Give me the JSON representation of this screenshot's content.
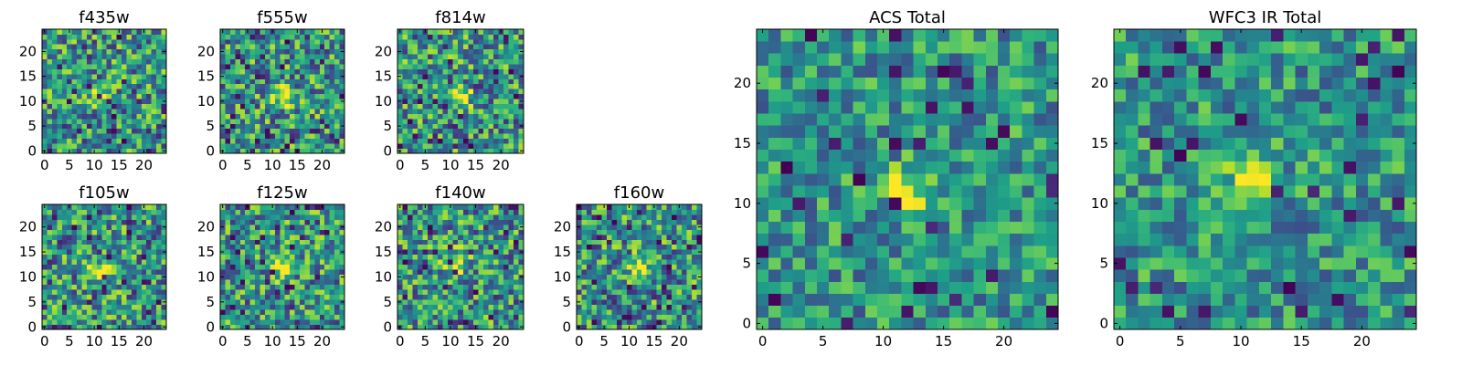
{
  "chart_data": [
    {
      "type": "heatmap",
      "title": "f435w",
      "xlim": [
        0,
        25
      ],
      "ylim": [
        0,
        25
      ],
      "xticks": [
        "0",
        "5",
        "10",
        "15",
        "20"
      ],
      "yticks": [
        "0",
        "5",
        "10",
        "15",
        "20"
      ],
      "colormap": "viridis",
      "source_center": [
        11,
        11
      ]
    },
    {
      "type": "heatmap",
      "title": "f555w",
      "xlim": [
        0,
        25
      ],
      "ylim": [
        0,
        25
      ],
      "xticks": [
        "0",
        "5",
        "10",
        "15",
        "20"
      ],
      "yticks": [
        "0",
        "5",
        "10",
        "15",
        "20"
      ],
      "colormap": "viridis",
      "source_center": [
        12,
        11
      ]
    },
    {
      "type": "heatmap",
      "title": "f814w",
      "xlim": [
        0,
        25
      ],
      "ylim": [
        0,
        25
      ],
      "xticks": [
        "0",
        "5",
        "10",
        "15",
        "20"
      ],
      "yticks": [
        "0",
        "5",
        "10",
        "15",
        "20"
      ],
      "colormap": "viridis",
      "source_center": [
        12,
        11
      ]
    },
    {
      "type": "heatmap",
      "title": "f105w",
      "xlim": [
        0,
        25
      ],
      "ylim": [
        0,
        25
      ],
      "xticks": [
        "0",
        "5",
        "10",
        "15",
        "20"
      ],
      "yticks": [
        "0",
        "5",
        "10",
        "15",
        "20"
      ],
      "colormap": "viridis",
      "source_center": [
        11,
        11
      ]
    },
    {
      "type": "heatmap",
      "title": "f125w",
      "xlim": [
        0,
        25
      ],
      "ylim": [
        0,
        25
      ],
      "xticks": [
        "0",
        "5",
        "10",
        "15",
        "20"
      ],
      "yticks": [
        "0",
        "5",
        "10",
        "15",
        "20"
      ],
      "colormap": "viridis",
      "source_center": [
        12,
        12
      ]
    },
    {
      "type": "heatmap",
      "title": "f140w",
      "xlim": [
        0,
        25
      ],
      "ylim": [
        0,
        25
      ],
      "xticks": [
        "0",
        "5",
        "10",
        "15",
        "20"
      ],
      "yticks": [
        "0",
        "5",
        "10",
        "15",
        "20"
      ],
      "colormap": "viridis",
      "source_center": [
        11,
        13
      ]
    },
    {
      "type": "heatmap",
      "title": "f160w",
      "xlim": [
        0,
        25
      ],
      "ylim": [
        0,
        25
      ],
      "xticks": [
        "0",
        "5",
        "10",
        "15",
        "20"
      ],
      "yticks": [
        "0",
        "5",
        "10",
        "15",
        "20"
      ],
      "colormap": "viridis",
      "source_center": [
        12,
        12
      ]
    },
    {
      "type": "heatmap",
      "title": "ACS Total",
      "xlim": [
        0,
        25
      ],
      "ylim": [
        0,
        25
      ],
      "xticks": [
        "0",
        "5",
        "10",
        "15",
        "20"
      ],
      "yticks": [
        "0",
        "5",
        "10",
        "15",
        "20"
      ],
      "colormap": "viridis",
      "source_center": [
        12,
        11
      ]
    },
    {
      "type": "heatmap",
      "title": "WFC3 IR Total",
      "xlim": [
        0,
        25
      ],
      "ylim": [
        0,
        25
      ],
      "xticks": [
        "0",
        "5",
        "10",
        "15",
        "20"
      ],
      "yticks": [
        "0",
        "5",
        "10",
        "15",
        "20"
      ],
      "colormap": "viridis",
      "source_center": [
        11,
        12
      ]
    }
  ]
}
